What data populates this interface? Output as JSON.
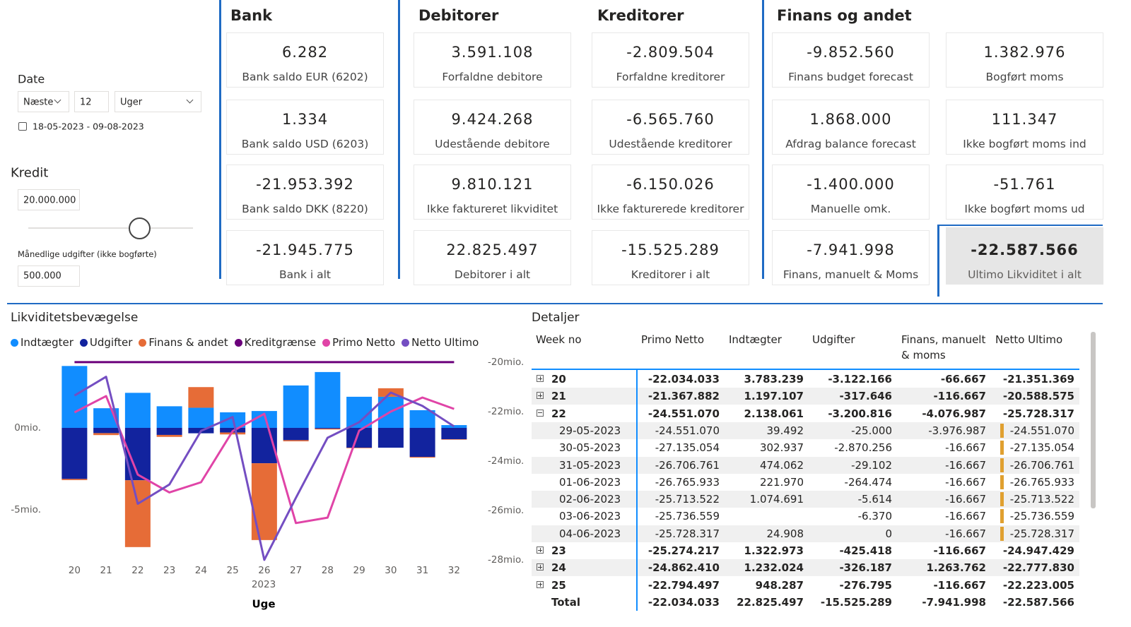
{
  "filters": {
    "date_label": "Date",
    "period": "Næste",
    "count": "12",
    "unit": "Uger",
    "date_range": "18-05-2023 - 09-08-2023",
    "kredit_label": "Kredit",
    "kredit_value": "20.000.000",
    "monthly_label": "Månedlige udgifter (ikke bogførte)",
    "monthly_value": "500.000"
  },
  "kpi": {
    "sections": [
      {
        "title": "Bank",
        "cards": [
          {
            "value": "6.282",
            "label": "Bank saldo EUR (6202)"
          },
          {
            "value": "1.334",
            "label": "Bank saldo USD (6203)"
          },
          {
            "value": "-21.953.392",
            "label": "Bank saldo DKK (8220)"
          },
          {
            "value": "-21.945.775",
            "label": "Bank i alt"
          }
        ]
      },
      {
        "title": "Debitorer",
        "cards": [
          {
            "value": "3.591.108",
            "label": "Forfaldne debitore"
          },
          {
            "value": "9.424.268",
            "label": "Udestående debitore"
          },
          {
            "value": "9.810.121",
            "label": "Ikke faktureret likviditet"
          },
          {
            "value": "22.825.497",
            "label": "Debitorer i alt"
          }
        ]
      },
      {
        "title": "Kreditorer",
        "cards": [
          {
            "value": "-2.809.504",
            "label": "Forfaldne kreditorer"
          },
          {
            "value": "-6.565.760",
            "label": "Udestående kreditorer"
          },
          {
            "value": "-6.150.026",
            "label": "Ikke fakturerede kreditorer"
          },
          {
            "value": "-15.525.289",
            "label": "Kreditorer i alt"
          }
        ]
      },
      {
        "title": "Finans og andet",
        "cards": [
          {
            "value": "-9.852.560",
            "label": "Finans budget forecast"
          },
          {
            "value": "1.868.000",
            "label": "Afdrag balance forecast"
          },
          {
            "value": "-1.400.000",
            "label": "Manuelle omk."
          },
          {
            "value": "-7.941.998",
            "label": "Finans, manuelt & Moms"
          },
          {
            "value": "1.382.976",
            "label": "Bogført moms"
          },
          {
            "value": "111.347",
            "label": "Ikke bogført moms ind"
          },
          {
            "value": "-51.761",
            "label": "Ikke bogført moms ud"
          },
          {
            "value": "-22.587.566",
            "label": "Ultimo Likviditet i alt",
            "highlight": true
          }
        ]
      }
    ]
  },
  "chart_data": {
    "type": "combo",
    "title": "Likviditetsbevægelse",
    "xlabel": "Uge",
    "x_group_label": "2023",
    "categories": [
      20,
      21,
      22,
      23,
      24,
      25,
      26,
      27,
      28,
      29,
      30,
      31,
      32
    ],
    "series": [
      {
        "name": "Indtægter",
        "kind": "bar",
        "color": "#118DFF",
        "values": [
          3.78,
          1.2,
          2.14,
          1.32,
          1.23,
          0.95,
          1.03,
          2.59,
          3.41,
          1.9,
          1.9,
          1.08,
          0.17
        ]
      },
      {
        "name": "Udgifter",
        "kind": "bar",
        "color": "#12239E",
        "values": [
          -3.12,
          -0.32,
          -3.2,
          -0.43,
          -0.33,
          -0.28,
          -2.16,
          -0.75,
          -0.05,
          -1.21,
          -1.21,
          -1.77,
          -0.69
        ]
      },
      {
        "name": "Finans & andet",
        "kind": "bar",
        "color": "#E66C37",
        "values": [
          -0.07,
          -0.12,
          -4.08,
          -0.12,
          1.26,
          -0.12,
          -4.69,
          -0.07,
          -0.05,
          -0.03,
          0.52,
          -0.05,
          -0.03
        ]
      },
      {
        "name": "Kreditgrænse",
        "kind": "line",
        "axis": "y2",
        "color": "#6B007B",
        "values": [
          -20,
          -20,
          -20,
          -20,
          -20,
          -20,
          -20,
          -20,
          -20,
          -20,
          -20,
          -20,
          -20
        ]
      },
      {
        "name": "Primo Netto",
        "kind": "line",
        "axis": "y2",
        "color": "#E044A7",
        "values": [
          -22.03,
          -21.37,
          -24.55,
          -25.27,
          -24.86,
          -22.79,
          -22.09,
          -26.51,
          -26.29,
          -22.77,
          -22.0,
          -21.43,
          -21.89
        ]
      },
      {
        "name": "Netto Ultimo",
        "kind": "line",
        "axis": "y2",
        "color": "#744EC2",
        "values": [
          -21.35,
          -20.59,
          -25.73,
          -24.95,
          -22.78,
          -22.22,
          -28.0,
          -25.49,
          -23.06,
          -22.43,
          -21.23,
          -21.77,
          -22.6
        ]
      }
    ],
    "ylim": [
      -8.15,
      4.57
    ],
    "yticks": [
      {
        "value": -5,
        "label": "-5mio."
      },
      {
        "value": 0,
        "label": "0mio."
      }
    ],
    "y2lim": [
      -28.06,
      -19.63
    ],
    "y2ticks": [
      {
        "value": -28,
        "label": "-28mio."
      },
      {
        "value": -26,
        "label": "-26mio."
      },
      {
        "value": -24,
        "label": "-24mio."
      },
      {
        "value": -22,
        "label": "-22mio."
      },
      {
        "value": -20,
        "label": "-20mio."
      }
    ],
    "grid": false,
    "legend": "top-left"
  },
  "details": {
    "title": "Detaljer",
    "columns": [
      "Week no",
      "Primo Netto",
      "Indtægter",
      "Udgifter",
      "Finans, manuelt & moms",
      "Netto Ultimo"
    ],
    "rows": [
      {
        "week": "20",
        "expanded": false,
        "cells": [
          "-22.034.033",
          "3.783.239",
          "-3.122.166",
          "-66.667",
          "-21.351.369"
        ]
      },
      {
        "week": "21",
        "expanded": false,
        "cells": [
          "-21.367.882",
          "1.197.107",
          "-317.646",
          "-116.667",
          "-20.588.575"
        ]
      },
      {
        "week": "22",
        "expanded": true,
        "cells": [
          "-24.551.070",
          "2.138.061",
          "-3.200.816",
          "-4.076.987",
          "-25.728.317"
        ],
        "children": [
          {
            "date": "29-05-2023",
            "cells": [
              "-24.551.070",
              "39.492",
              "-25.000",
              "-3.976.987",
              "-24.551.070"
            ]
          },
          {
            "date": "30-05-2023",
            "cells": [
              "-27.135.054",
              "302.937",
              "-2.870.256",
              "-16.667",
              "-27.135.054"
            ]
          },
          {
            "date": "31-05-2023",
            "cells": [
              "-26.706.761",
              "474.062",
              "-29.102",
              "-16.667",
              "-26.706.761"
            ]
          },
          {
            "date": "01-06-2023",
            "cells": [
              "-26.765.933",
              "221.970",
              "-264.474",
              "-16.667",
              "-26.765.933"
            ]
          },
          {
            "date": "02-06-2023",
            "cells": [
              "-25.713.522",
              "1.074.691",
              "-5.614",
              "-16.667",
              "-25.713.522"
            ]
          },
          {
            "date": "03-06-2023",
            "cells": [
              "-25.736.559",
              null,
              "-6.370",
              "-16.667",
              "-25.736.559"
            ]
          },
          {
            "date": "04-06-2023",
            "cells": [
              "-25.728.317",
              "24.908",
              "0",
              "-16.667",
              "-25.728.317"
            ]
          }
        ]
      },
      {
        "week": "23",
        "expanded": false,
        "cells": [
          "-25.274.217",
          "1.322.973",
          "-425.418",
          "-116.667",
          "-24.947.429"
        ]
      },
      {
        "week": "24",
        "expanded": false,
        "cells": [
          "-24.862.410",
          "1.232.024",
          "-326.187",
          "1.263.762",
          "-22.777.830"
        ]
      },
      {
        "week": "25",
        "expanded": false,
        "cells": [
          "-22.794.497",
          "948.287",
          "-276.795",
          "-116.667",
          "-22.223.005"
        ]
      }
    ],
    "total": {
      "label": "Total",
      "cells": [
        "-22.034.033",
        "22.825.497",
        "-15.525.289",
        "-7.941.998",
        "-22.587.566"
      ]
    }
  }
}
